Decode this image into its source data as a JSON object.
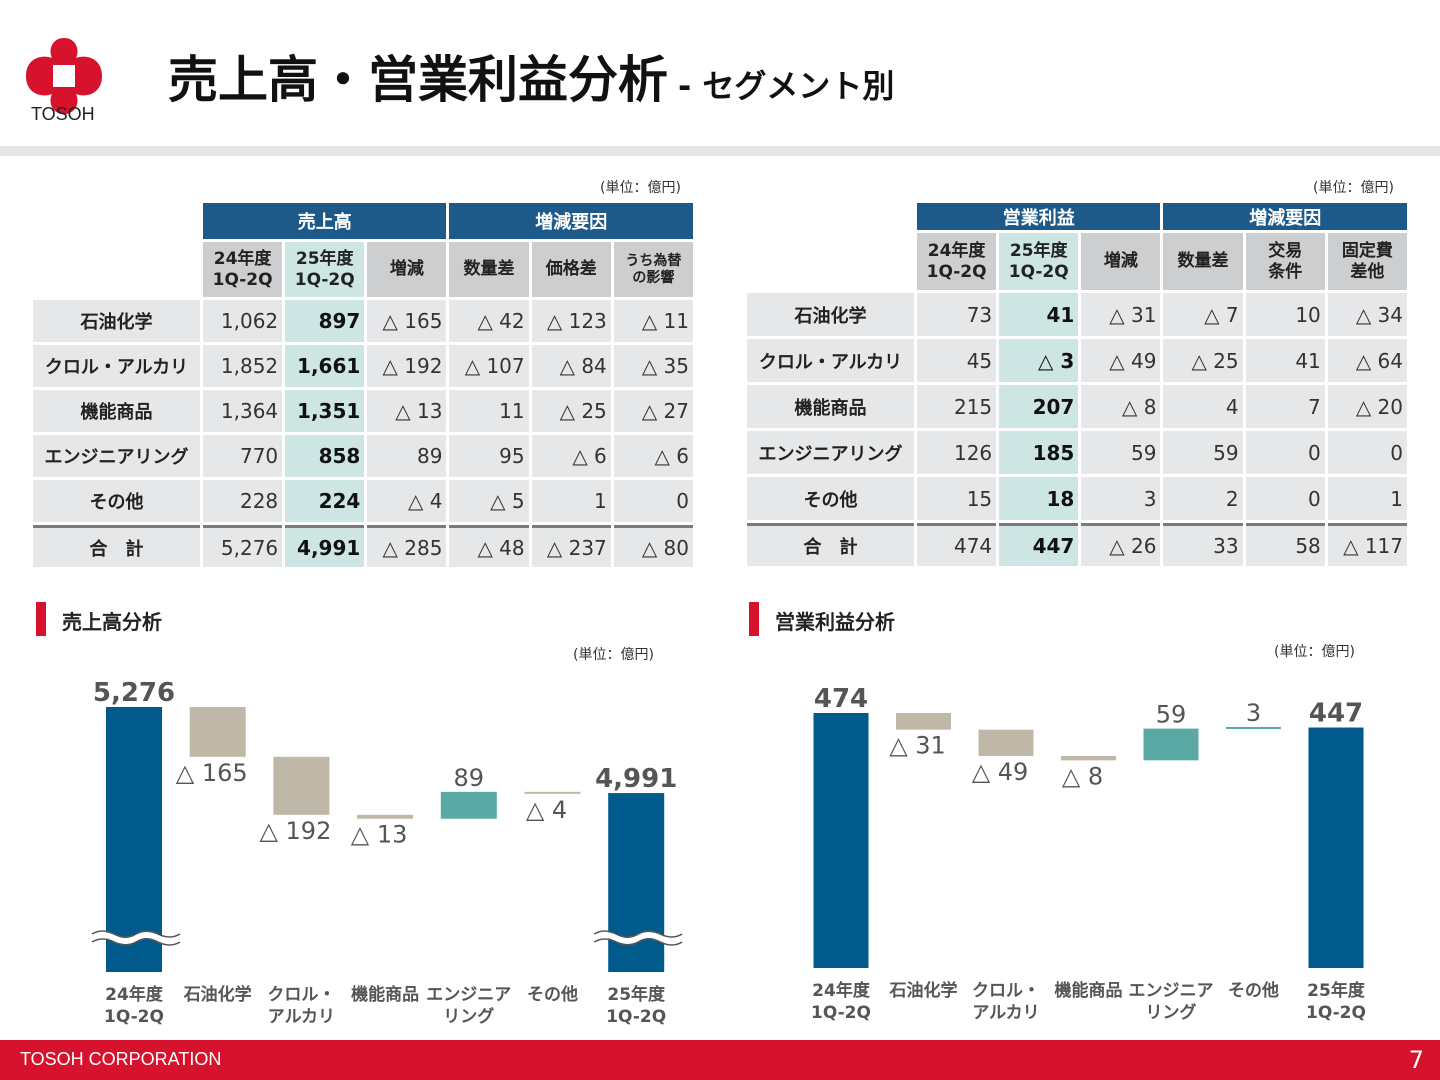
{
  "header": {
    "logo_text": "TOSOH",
    "title": "売上高・営業利益分析",
    "subtitle": "- セグメント別"
  },
  "colors": {
    "brand_red": "#d7122c",
    "header_blue": "#1d5a8a",
    "bar_blue": "#005a8c",
    "decrease": "#bfb8a8",
    "increase": "#5aa9a5",
    "highlight": "#cde5e3"
  },
  "sales_table": {
    "unit": "(単位：億円)",
    "group_headers": [
      "売上高",
      "増減要因"
    ],
    "columns": [
      "24年度\n1Q-2Q",
      "25年度\n1Q-2Q",
      "増減",
      "数量差",
      "価格差",
      "うち為替\nの影響"
    ],
    "rows": [
      {
        "label": "石油化学",
        "values": [
          "1,062",
          "897",
          "△ 165",
          "△ 42",
          "△ 123",
          "△ 11"
        ]
      },
      {
        "label": "クロル・アルカリ",
        "values": [
          "1,852",
          "1,661",
          "△ 192",
          "△ 107",
          "△ 84",
          "△ 35"
        ]
      },
      {
        "label": "機能商品",
        "values": [
          "1,364",
          "1,351",
          "△ 13",
          "11",
          "△ 25",
          "△ 27"
        ]
      },
      {
        "label": "エンジニアリング",
        "values": [
          "770",
          "858",
          "89",
          "95",
          "△ 6",
          "△ 6"
        ]
      },
      {
        "label": "その他",
        "values": [
          "228",
          "224",
          "△ 4",
          "△ 5",
          "1",
          "0"
        ]
      },
      {
        "label": "合　計",
        "values": [
          "5,276",
          "4,991",
          "△ 285",
          "△ 48",
          "△ 237",
          "△ 80"
        ]
      }
    ]
  },
  "profit_table": {
    "unit": "(単位：億円)",
    "group_headers": [
      "営業利益",
      "増減要因"
    ],
    "columns": [
      "24年度\n1Q-2Q",
      "25年度\n1Q-2Q",
      "増減",
      "数量差",
      "交易\n条件",
      "固定費\n差他"
    ],
    "rows": [
      {
        "label": "石油化学",
        "values": [
          "73",
          "41",
          "△ 31",
          "△ 7",
          "10",
          "△ 34"
        ]
      },
      {
        "label": "クロル・アルカリ",
        "values": [
          "45",
          "△ 3",
          "△ 49",
          "△ 25",
          "41",
          "△ 64"
        ]
      },
      {
        "label": "機能商品",
        "values": [
          "215",
          "207",
          "△ 8",
          "4",
          "7",
          "△ 20"
        ]
      },
      {
        "label": "エンジニアリング",
        "values": [
          "126",
          "185",
          "59",
          "59",
          "0",
          "0"
        ]
      },
      {
        "label": "その他",
        "values": [
          "15",
          "18",
          "3",
          "2",
          "0",
          "1"
        ]
      },
      {
        "label": "合　計",
        "values": [
          "474",
          "447",
          "△ 26",
          "33",
          "58",
          "△ 117"
        ]
      }
    ]
  },
  "chart_data": [
    {
      "type": "bar",
      "subtype": "waterfall",
      "title": "売上高分析",
      "unit": "(単位：億円)",
      "axis_break": true,
      "categories": [
        "24年度\n1Q-2Q",
        "石油化学",
        "クロル・\nアルカリ",
        "機能商品",
        "エンジニア\nリング",
        "その他",
        "25年度\n1Q-2Q"
      ],
      "values": [
        5276,
        -165,
        -192,
        -13,
        89,
        -4,
        4991
      ],
      "labels": [
        "5,276",
        "△ 165",
        "△ 192",
        "△ 13",
        "89",
        "△ 4",
        "4,991"
      ]
    },
    {
      "type": "bar",
      "subtype": "waterfall",
      "title": "営業利益分析",
      "unit": "(単位：億円)",
      "axis_break": false,
      "categories": [
        "24年度\n1Q-2Q",
        "石油化学",
        "クロル・\nアルカリ",
        "機能商品",
        "エンジニア\nリング",
        "その他",
        "25年度\n1Q-2Q"
      ],
      "values": [
        474,
        -31,
        -49,
        -8,
        59,
        3,
        447
      ],
      "labels": [
        "474",
        "△ 31",
        "△ 49",
        "△ 8",
        "59",
        "3",
        "447"
      ]
    }
  ],
  "footer": {
    "company": "TOSOH CORPORATION",
    "page": "7"
  }
}
